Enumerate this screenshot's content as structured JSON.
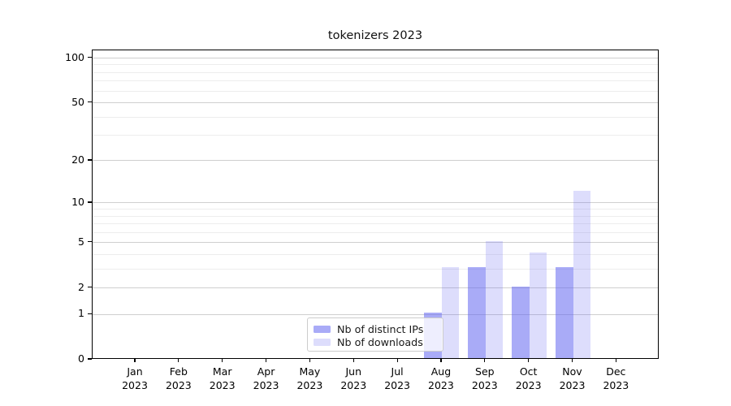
{
  "title": "tokenizers 2023",
  "colors": {
    "bar_base": "#6366f1",
    "alpha_distinct_ips": 0.55,
    "alpha_downloads": 0.22,
    "grid_major": "#cfcfcf",
    "grid_minor": "#ededed",
    "spine": "#000000",
    "text": "#000000"
  },
  "chart_data": {
    "type": "bar",
    "title": "tokenizers 2023",
    "categories": [
      "Jan",
      "Feb",
      "Mar",
      "Apr",
      "May",
      "Jun",
      "Jul",
      "Aug",
      "Sep",
      "Oct",
      "Nov",
      "Dec"
    ],
    "year_label": "2023",
    "series": [
      {
        "name": "Nb of distinct IPs",
        "values": [
          0,
          0,
          0,
          0,
          0,
          0,
          0,
          1,
          3,
          2,
          3,
          0
        ]
      },
      {
        "name": "Nb of downloads",
        "values": [
          0,
          0,
          0,
          0,
          0,
          0,
          0,
          3,
          5,
          4,
          12,
          0
        ]
      }
    ],
    "xlabel": "",
    "ylabel": "",
    "y_ticks": [
      0,
      1,
      2,
      5,
      10,
      20,
      50,
      100
    ],
    "y_minor_ticks": [
      3,
      4,
      6,
      7,
      8,
      9,
      30,
      40,
      60,
      70,
      80,
      90
    ],
    "scale": "log1p",
    "ylim": [
      0,
      112.7
    ],
    "grid": "on",
    "legend_position": "inside-bottom-center"
  }
}
